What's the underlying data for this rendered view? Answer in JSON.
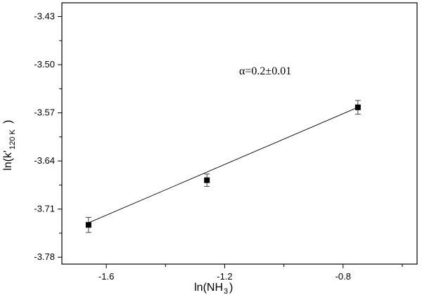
{
  "chart_data": {
    "type": "scatter",
    "xlabel": "ln(NH",
    "xlabel_sub": "3",
    "xlabel_tail": ")",
    "ylabel": "ln(k'",
    "ylabel_sub": "120 K",
    "ylabel_tail": ")",
    "annotation": "α=0.2±0.01",
    "xlim": [
      -1.75,
      -0.55
    ],
    "ylim": [
      -3.79,
      -3.41
    ],
    "x_ticks": [
      -1.6,
      -1.2,
      -0.8
    ],
    "x_tick_labels": [
      "-1.6",
      "-1.2",
      "-0.8"
    ],
    "y_ticks": [
      -3.43,
      -3.5,
      -3.57,
      -3.64,
      -3.71,
      -3.78
    ],
    "y_tick_labels": [
      "-3.43",
      "-3.50",
      "-3.57",
      "-3.64",
      "-3.71",
      "-3.78"
    ],
    "points": [
      {
        "x": -1.66,
        "y": -3.733,
        "err": 0.011
      },
      {
        "x": -1.26,
        "y": -3.668,
        "err": 0.009
      },
      {
        "x": -0.75,
        "y": -3.562,
        "err": 0.01
      }
    ],
    "fit_line": {
      "x": [
        -1.66,
        -0.75
      ],
      "y": [
        -3.73,
        -3.562
      ]
    },
    "grid": false,
    "legend": false
  }
}
